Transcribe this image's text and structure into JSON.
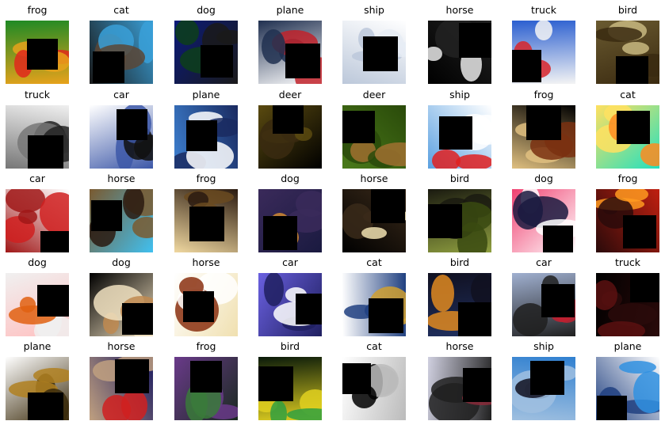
{
  "grid": {
    "labels": [
      "frog",
      "cat",
      "dog",
      "plane",
      "ship",
      "horse",
      "truck",
      "bird",
      "truck",
      "car",
      "plane",
      "deer",
      "deer",
      "ship",
      "frog",
      "cat",
      "car",
      "horse",
      "frog",
      "dog",
      "horse",
      "bird",
      "dog",
      "frog",
      "dog",
      "dog",
      "horse",
      "car",
      "cat",
      "bird",
      "car",
      "truck",
      "plane",
      "horse",
      "frog",
      "bird",
      "cat",
      "horse",
      "ship",
      "plane"
    ],
    "palettes": [
      [
        "#1e8a25",
        "#e0281c",
        "#e8a21b"
      ],
      [
        "#1a1a1a",
        "#5b4636",
        "#3aa0d8"
      ],
      [
        "#0a1a7a",
        "#0d3f1a",
        "#1a1a1a"
      ],
      [
        "#ffffff",
        "#c1222a",
        "#203050"
      ],
      [
        "#ffffff",
        "#e6ecf4",
        "#bcc8da"
      ],
      [
        "#000000",
        "#e8e8e8",
        "#222222"
      ],
      [
        "#2b5fd0",
        "#d8252a",
        "#f4f4f4"
      ],
      [
        "#6a5a30",
        "#c8b880",
        "#3a2a10"
      ],
      [
        "#f0f0f0",
        "#222222",
        "#777777"
      ],
      [
        "#ffffff",
        "#111111",
        "#3d58a8"
      ],
      [
        "#3d80d0",
        "#ffffff",
        "#1a2a60"
      ],
      [
        "#000000",
        "#3a2a10",
        "#5a4a10"
      ],
      [
        "#4a7a1a",
        "#a07030",
        "#2a4a0a"
      ],
      [
        "#5aa0e0",
        "#e02020",
        "#ffffff"
      ],
      [
        "#000000",
        "#7a3010",
        "#e0c080"
      ],
      [
        "#20e0c0",
        "#ff8a20",
        "#ffe060"
      ],
      [
        "#ffffff",
        "#d02020",
        "#a01818"
      ],
      [
        "#40c0f0",
        "#2a1a10",
        "#7a5a30"
      ],
      [
        "#f0d8a0",
        "#6a4a20",
        "#2a1a10"
      ],
      [
        "#1a1a40",
        "#d08a30",
        "#3a2a5a"
      ],
      [
        "#000000",
        "#f0e0b0",
        "#3a2a1a"
      ],
      [
        "#90a040",
        "#3a4a10",
        "#1a1a10"
      ],
      [
        "#f04070",
        "#1a1a40",
        "#ffffff"
      ],
      [
        "#c02010",
        "#ff9a20",
        "#2a0a0a"
      ],
      [
        "#ffc0c0",
        "#e06010",
        "#f0f0f0"
      ],
      [
        "#000000",
        "#c08a50",
        "#f0e0c0"
      ],
      [
        "#f0e0b0",
        "#8a3010",
        "#ffffff"
      ],
      [
        "#6a60e0",
        "#ffffff",
        "#202060"
      ],
      [
        "#ffffff",
        "#d0a030",
        "#204080"
      ],
      [
        "#203060",
        "#e08a20",
        "#101020"
      ],
      [
        "#a0b0d0",
        "#c02030",
        "#202020"
      ],
      [
        "#000000",
        "#5a1010",
        "#2a0a0a"
      ],
      [
        "#ffffff",
        "#b08020",
        "#3a2a0a"
      ],
      [
        "#1a1a60",
        "#d02020",
        "#c0a080"
      ],
      [
        "#1a2a20",
        "#3a7a3a",
        "#6a3a8a"
      ],
      [
        "#0a1a0a",
        "#30a040",
        "#e0d020"
      ],
      [
        "#ffffff",
        "#000000",
        "#bbbbbb"
      ],
      [
        "#d0d0e0",
        "#8a2a3a",
        "#202020"
      ],
      [
        "#3080d0",
        "#101020",
        "#a0c0e0"
      ],
      [
        "#ffffff",
        "#3090e0",
        "#204080"
      ]
    ]
  }
}
